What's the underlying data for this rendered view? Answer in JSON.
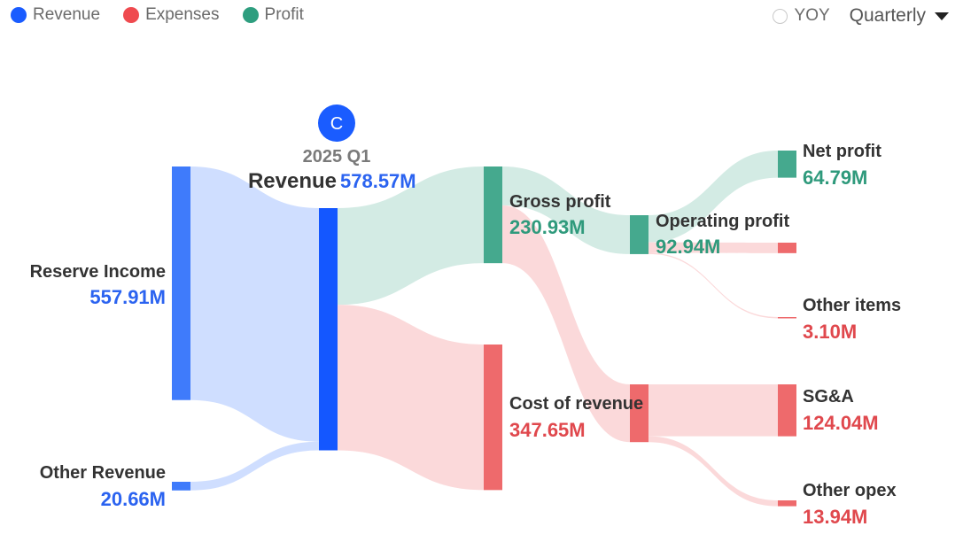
{
  "legend": [
    {
      "label": "Revenue",
      "color": "#1a5cff"
    },
    {
      "label": "Expenses",
      "color": "#ef4a4f"
    },
    {
      "label": "Profit",
      "color": "#2e9e7f"
    }
  ],
  "controls": {
    "yoy_label": "YOY",
    "period_label": "Quarterly"
  },
  "header": {
    "badge_letter": "C",
    "period": "2025 Q1",
    "center_name": "Revenue",
    "center_value": "578.57M"
  },
  "colors": {
    "revenue_node": "#3f7bfb",
    "revenue_center": "#1457ff",
    "revenue_flow": "#cfdeff",
    "revenue_text": "#2b63f0",
    "profit_node": "#45a98e",
    "profit_flow": "#d3ebe4",
    "profit_text": "#2f9a7c",
    "expense_node": "#ee6a6c",
    "expense_flow": "#fbd9da",
    "expense_text": "#e0484d"
  },
  "chart_data": {
    "type": "sankey",
    "unit": "M",
    "period": "2025 Q1",
    "nodes": [
      {
        "id": "reserve_income",
        "name": "Reserve Income",
        "value": 557.91,
        "display": "557.91M",
        "category": "revenue"
      },
      {
        "id": "other_revenue",
        "name": "Other Revenue",
        "value": 20.66,
        "display": "20.66M",
        "category": "revenue"
      },
      {
        "id": "revenue",
        "name": "Revenue",
        "value": 578.57,
        "display": "578.57M",
        "category": "revenue"
      },
      {
        "id": "gross_profit",
        "name": "Gross profit",
        "value": 230.93,
        "display": "230.93M",
        "category": "profit"
      },
      {
        "id": "cost_of_revenue",
        "name": "Cost of revenue",
        "value": 347.65,
        "display": "347.65M",
        "category": "expense"
      },
      {
        "id": "operating_profit",
        "name": "Operating profit",
        "value": 92.94,
        "display": "92.94M",
        "category": "profit"
      },
      {
        "id": "opex",
        "name": "",
        "value": 137.98,
        "display": "",
        "category": "expense"
      },
      {
        "id": "net_profit",
        "name": "Net profit",
        "value": 64.79,
        "display": "64.79M",
        "category": "profit"
      },
      {
        "id": "tax",
        "name": "",
        "value": 25.05,
        "display": "",
        "category": "expense"
      },
      {
        "id": "other_items",
        "name": "Other items",
        "value": 3.1,
        "display": "3.10M",
        "category": "expense"
      },
      {
        "id": "sga",
        "name": "SG&A",
        "value": 124.04,
        "display": "124.04M",
        "category": "expense"
      },
      {
        "id": "other_opex",
        "name": "Other opex",
        "value": 13.94,
        "display": "13.94M",
        "category": "expense"
      }
    ],
    "links": [
      {
        "source": "reserve_income",
        "target": "revenue",
        "value": 557.91
      },
      {
        "source": "other_revenue",
        "target": "revenue",
        "value": 20.66
      },
      {
        "source": "revenue",
        "target": "gross_profit",
        "value": 230.93
      },
      {
        "source": "revenue",
        "target": "cost_of_revenue",
        "value": 347.65
      },
      {
        "source": "gross_profit",
        "target": "operating_profit",
        "value": 92.94
      },
      {
        "source": "gross_profit",
        "target": "opex",
        "value": 137.98
      },
      {
        "source": "operating_profit",
        "target": "net_profit",
        "value": 64.79
      },
      {
        "source": "operating_profit",
        "target": "tax",
        "value": 25.05
      },
      {
        "source": "operating_profit",
        "target": "other_items",
        "value": 3.1
      },
      {
        "source": "opex",
        "target": "sga",
        "value": 124.04
      },
      {
        "source": "opex",
        "target": "other_opex",
        "value": 13.94
      }
    ]
  }
}
